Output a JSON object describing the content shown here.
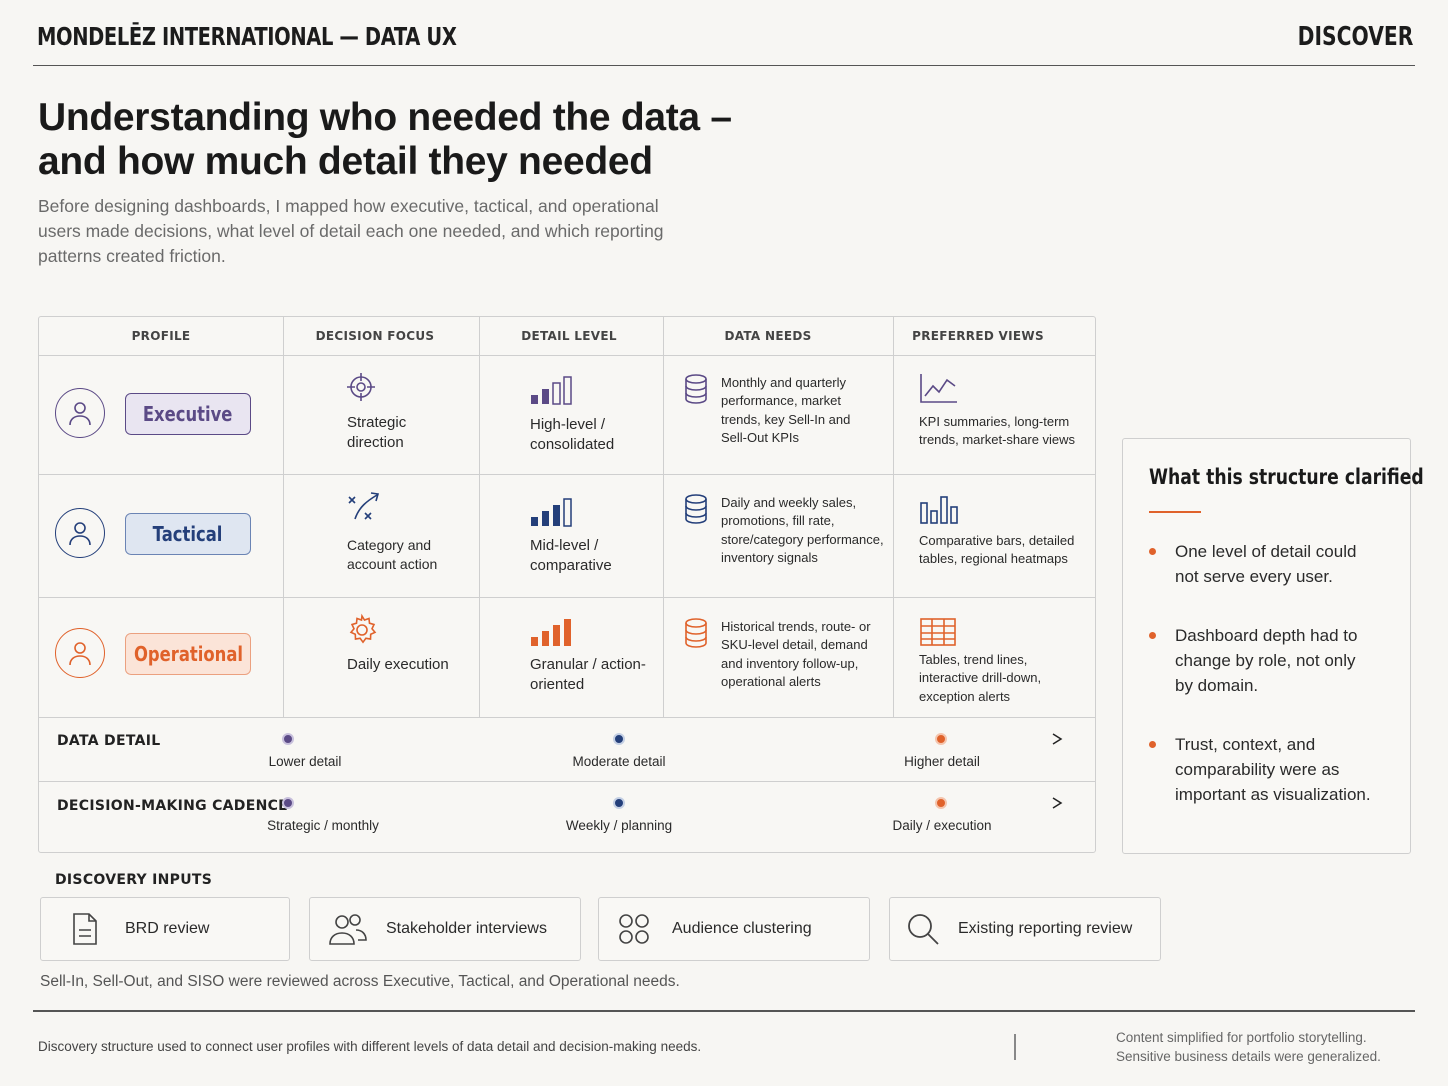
{
  "header": {
    "brand": "MONDELĒZ INTERNATIONAL — DATA UX",
    "section": "DISCOVER"
  },
  "title": "Understanding who needed the data – and how much detail they needed",
  "subtitle": "Before designing dashboards, I mapped how executive, tactical, and operational users made decisions, what level of detail each one needed, and which reporting patterns created friction.",
  "matrix": {
    "columns": [
      "PROFILE",
      "DECISION FOCUS",
      "DETAIL LEVEL",
      "DATA NEEDS",
      "PREFERRED VIEWS"
    ],
    "rows": [
      {
        "profile": "Executive",
        "focus": "Strategic direction",
        "detail": "High-level / consolidated",
        "needs": "Monthly and quarterly performance, market trends, key Sell-In and Sell-Out KPIs",
        "views": "KPI summaries, long-term trends, market-share views",
        "color": "#5b4a86"
      },
      {
        "profile": "Tactical",
        "focus": "Category and account action",
        "detail": "Mid-level / comparative",
        "needs": "Daily and weekly sales, promotions, fill rate, store/category performance, inventory signals",
        "views": "Comparative bars, detailed tables, regional heatmaps",
        "color": "#243f7a"
      },
      {
        "profile": "Operational",
        "focus": "Daily execution",
        "detail": "Granular / action-oriented",
        "needs": "Historical trends, route- or SKU-level detail, demand and inventory follow-up, operational alerts",
        "views": "Tables, trend lines, interactive drill-down, exception alerts",
        "color": "#e0622b"
      }
    ],
    "scales": [
      {
        "label": "DATA DETAIL",
        "ticks": [
          "Lower detail",
          "Moderate detail",
          "Higher detail"
        ]
      },
      {
        "label": "DECISION-MAKING CADENCE",
        "ticks": [
          "Strategic / monthly",
          "Weekly / planning",
          "Daily / execution"
        ]
      }
    ]
  },
  "side": {
    "title": "What this structure clarified",
    "items": [
      "One level of detail could not serve every user.",
      "Dashboard depth had to change by role, not only by domain.",
      "Trust, context, and comparability were as important as visualization."
    ]
  },
  "inputs": {
    "label": "DISCOVERY INPUTS",
    "items": [
      {
        "label": "BRD review",
        "icon": "document-icon"
      },
      {
        "label": "Stakeholder interviews",
        "icon": "people-icon"
      },
      {
        "label": "Audience clustering",
        "icon": "cluster-icon"
      },
      {
        "label": "Existing reporting review",
        "icon": "search-icon"
      }
    ],
    "note": "Sell-In, Sell-Out, and SISO were reviewed across Executive, Tactical, and Operational needs."
  },
  "footer": {
    "left": "Discovery structure used to connect user profiles with different levels of data detail and decision-making needs.",
    "right_line1": "Content simplified for portfolio storytelling.",
    "right_line2": "Sensitive business details were generalized."
  }
}
